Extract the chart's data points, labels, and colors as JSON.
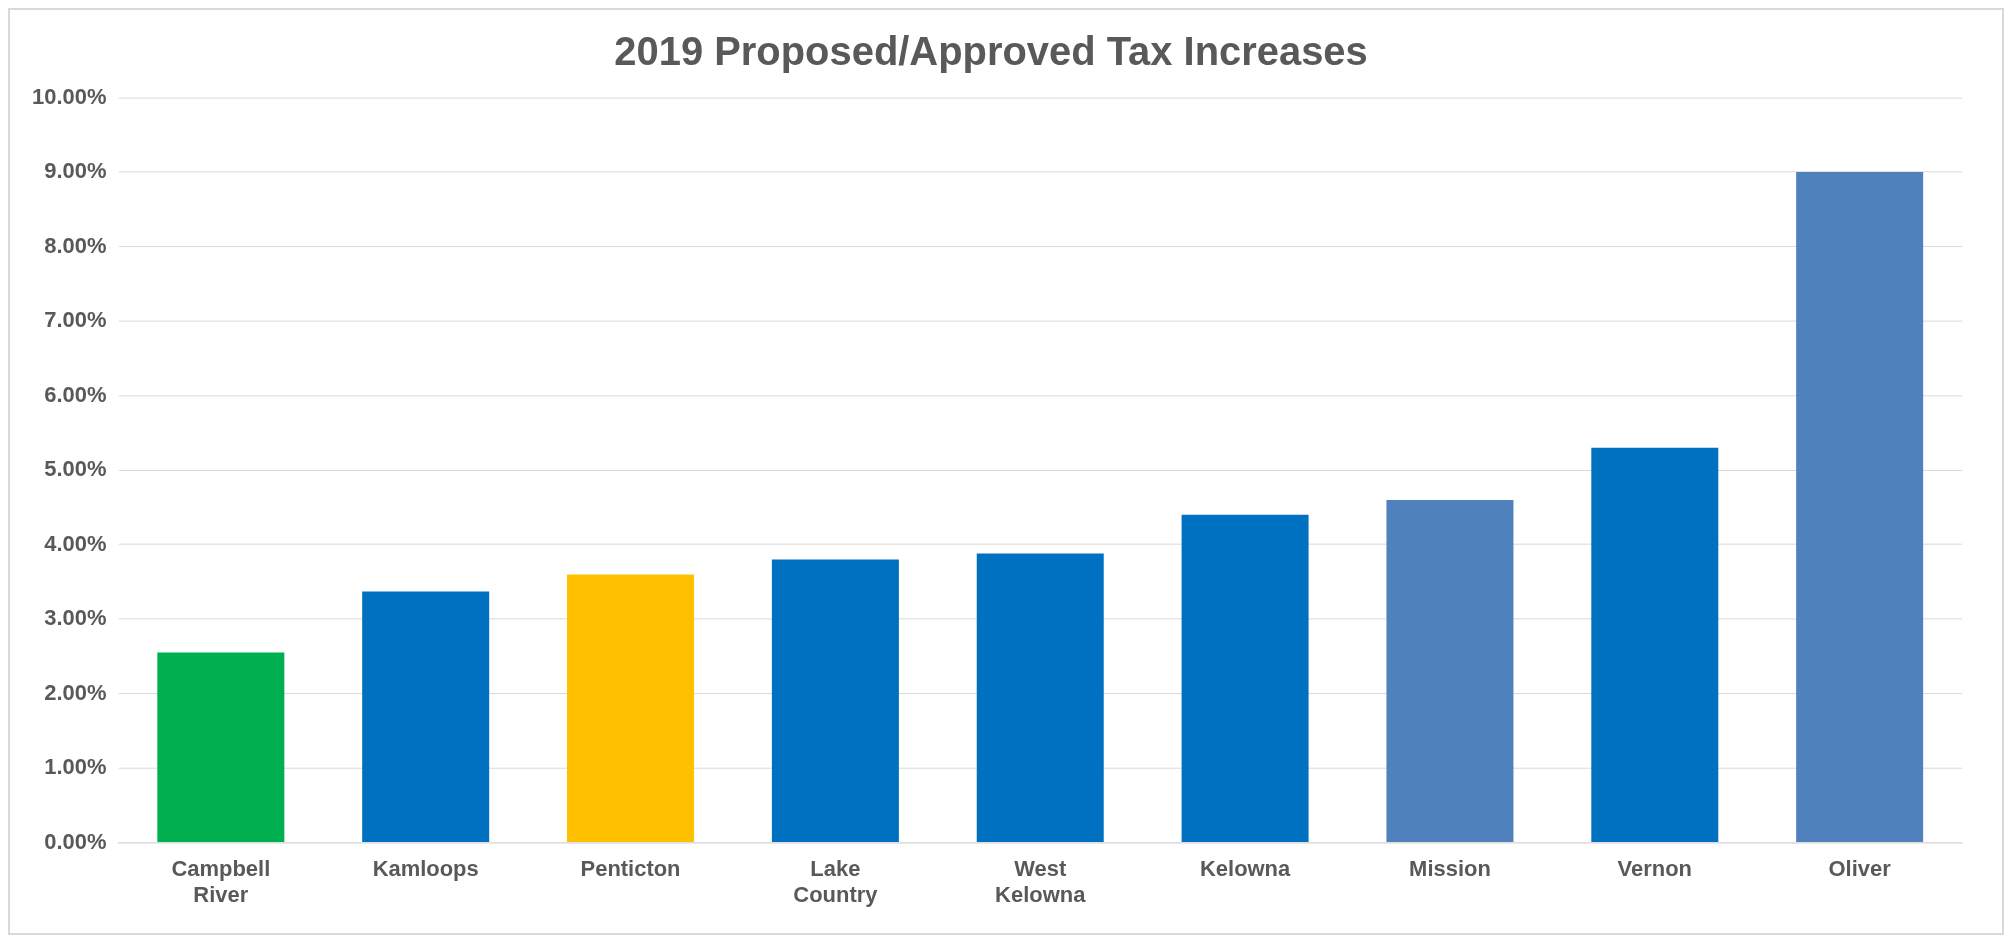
{
  "chart_data": {
    "type": "bar",
    "title": "2019 Proposed/Approved Tax Increases",
    "categories": [
      "Campbell River",
      "Kamloops",
      "Penticton",
      "Lake Country",
      "West Kelowna",
      "Kelowna",
      "Mission",
      "Vernon",
      "Oliver"
    ],
    "values": [
      2.55,
      3.37,
      3.6,
      3.8,
      3.88,
      4.4,
      4.6,
      5.3,
      9.0
    ],
    "colors": [
      "#00b050",
      "#0070c0",
      "#ffc000",
      "#0070c0",
      "#0070c0",
      "#0070c0",
      "#4f81bd",
      "#0070c0",
      "#4f81bd"
    ],
    "ylim": [
      0,
      10
    ],
    "yticks": [
      {
        "value": 0,
        "label": "0.00%"
      },
      {
        "value": 1,
        "label": "1.00%"
      },
      {
        "value": 2,
        "label": "2.00%"
      },
      {
        "value": 3,
        "label": "3.00%"
      },
      {
        "value": 4,
        "label": "4.00%"
      },
      {
        "value": 5,
        "label": "5.00%"
      },
      {
        "value": 6,
        "label": "6.00%"
      },
      {
        "value": 7,
        "label": "7.00%"
      },
      {
        "value": 8,
        "label": "8.00%"
      },
      {
        "value": 9,
        "label": "9.00%"
      },
      {
        "value": 10,
        "label": "10.00%"
      }
    ],
    "grid": "y",
    "legend": false
  }
}
